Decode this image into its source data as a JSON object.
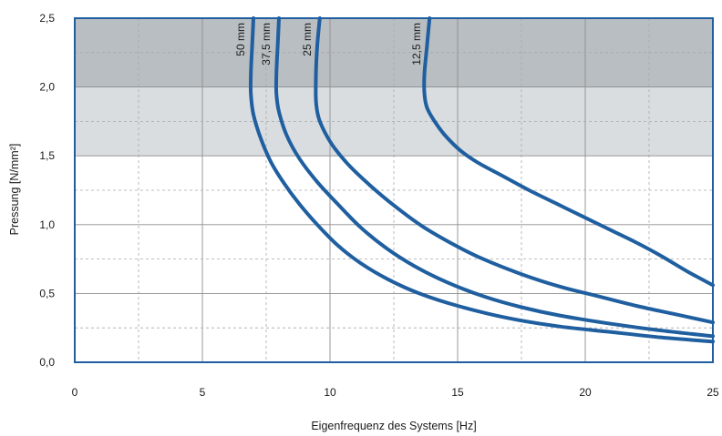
{
  "chart_data": {
    "type": "line",
    "xlabel": "Eigenfrequenz des Systems [Hz]",
    "ylabel": "Pressung [N/mm²]",
    "xlim": [
      0,
      25
    ],
    "ylim": [
      0,
      2.5
    ],
    "x_ticks": [
      "0",
      "5",
      "10",
      "15",
      "20",
      "25"
    ],
    "y_ticks": [
      "0,0",
      "0,5",
      "1,0",
      "1,5",
      "2,0",
      "2,5"
    ],
    "grid": true,
    "bands": [
      {
        "from": 2.0,
        "to": 2.5,
        "color": "#b9bec2"
      },
      {
        "from": 1.5,
        "to": 2.0,
        "color": "#d9dde0"
      }
    ],
    "line_color": "#1f5fa0",
    "series": [
      {
        "name": "50 mm",
        "points": [
          [
            7.0,
            2.5
          ],
          [
            6.95,
            2.3
          ],
          [
            6.9,
            2.1
          ],
          [
            6.9,
            1.95
          ],
          [
            7.0,
            1.8
          ],
          [
            7.3,
            1.62
          ],
          [
            7.7,
            1.45
          ],
          [
            8.2,
            1.3
          ],
          [
            8.8,
            1.15
          ],
          [
            9.5,
            1.0
          ],
          [
            10.3,
            0.85
          ],
          [
            11.2,
            0.72
          ],
          [
            12.3,
            0.6
          ],
          [
            13.5,
            0.5
          ],
          [
            15.0,
            0.41
          ],
          [
            17.0,
            0.32
          ],
          [
            19.0,
            0.26
          ],
          [
            21.0,
            0.22
          ],
          [
            23.0,
            0.18
          ],
          [
            25.0,
            0.15
          ]
        ]
      },
      {
        "name": "37,5 mm",
        "points": [
          [
            8.0,
            2.5
          ],
          [
            7.95,
            2.3
          ],
          [
            7.9,
            2.1
          ],
          [
            7.9,
            1.95
          ],
          [
            8.0,
            1.82
          ],
          [
            8.3,
            1.65
          ],
          [
            8.8,
            1.48
          ],
          [
            9.5,
            1.31
          ],
          [
            10.3,
            1.15
          ],
          [
            11.2,
            0.98
          ],
          [
            12.2,
            0.83
          ],
          [
            13.3,
            0.7
          ],
          [
            14.6,
            0.58
          ],
          [
            16.0,
            0.48
          ],
          [
            17.5,
            0.4
          ],
          [
            19.0,
            0.34
          ],
          [
            21.0,
            0.28
          ],
          [
            23.0,
            0.23
          ],
          [
            25.0,
            0.19
          ]
        ]
      },
      {
        "name": "25 mm",
        "points": [
          [
            9.6,
            2.5
          ],
          [
            9.5,
            2.3
          ],
          [
            9.45,
            2.1
          ],
          [
            9.45,
            1.9
          ],
          [
            9.55,
            1.78
          ],
          [
            9.8,
            1.67
          ],
          [
            10.2,
            1.55
          ],
          [
            10.8,
            1.42
          ],
          [
            11.6,
            1.28
          ],
          [
            12.5,
            1.14
          ],
          [
            13.6,
            0.99
          ],
          [
            14.8,
            0.86
          ],
          [
            16.0,
            0.75
          ],
          [
            17.5,
            0.64
          ],
          [
            19.0,
            0.55
          ],
          [
            20.5,
            0.48
          ],
          [
            22.0,
            0.41
          ],
          [
            23.5,
            0.35
          ],
          [
            25.0,
            0.29
          ]
        ]
      },
      {
        "name": "12,5 mm",
        "points": [
          [
            13.9,
            2.5
          ],
          [
            13.8,
            2.3
          ],
          [
            13.7,
            2.1
          ],
          [
            13.7,
            1.95
          ],
          [
            13.8,
            1.85
          ],
          [
            14.1,
            1.75
          ],
          [
            14.5,
            1.65
          ],
          [
            15.1,
            1.54
          ],
          [
            15.8,
            1.45
          ],
          [
            16.8,
            1.35
          ],
          [
            17.8,
            1.25
          ],
          [
            18.9,
            1.15
          ],
          [
            20.0,
            1.05
          ],
          [
            21.0,
            0.96
          ],
          [
            22.0,
            0.87
          ],
          [
            23.0,
            0.77
          ],
          [
            24.0,
            0.66
          ],
          [
            25.0,
            0.56
          ]
        ]
      }
    ]
  }
}
